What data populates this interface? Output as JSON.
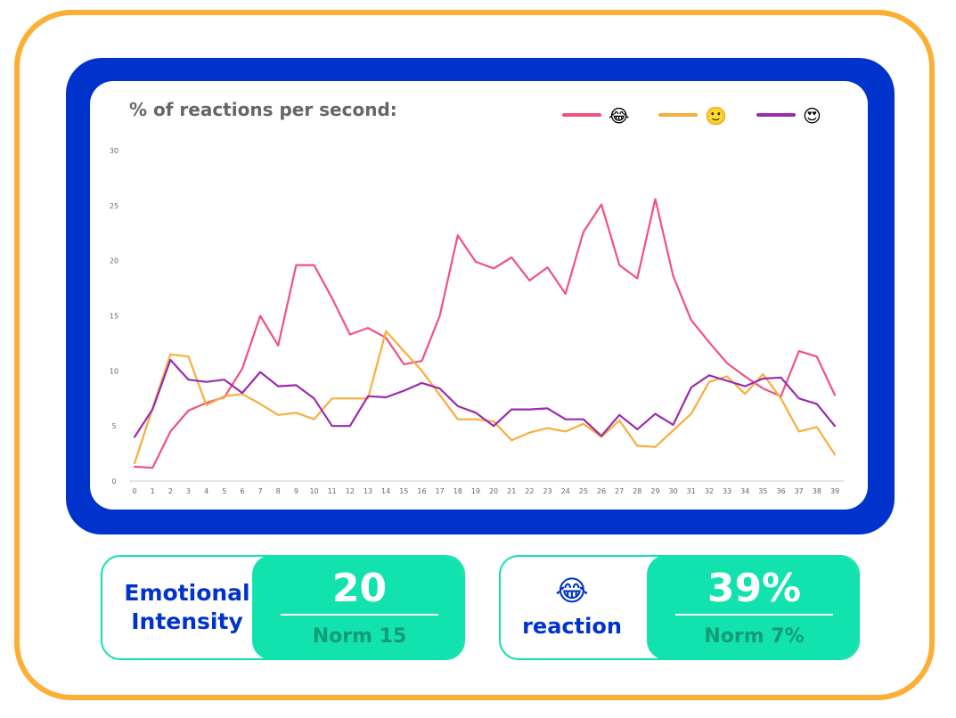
{
  "chart_data": {
    "type": "line",
    "title": "% of reactions per second:",
    "xlabel": "",
    "ylabel": "",
    "x": [
      0,
      1,
      2,
      3,
      4,
      5,
      6,
      7,
      8,
      9,
      10,
      11,
      12,
      13,
      14,
      15,
      16,
      17,
      18,
      19,
      20,
      21,
      22,
      23,
      24,
      25,
      26,
      27,
      28,
      29,
      30,
      31,
      32,
      33,
      34,
      35,
      36,
      37,
      38,
      39
    ],
    "ylim": [
      0,
      30
    ],
    "yticks": [
      0,
      5,
      10,
      15,
      20,
      25,
      30
    ],
    "grid": false,
    "legend_position": "top-right",
    "series": [
      {
        "name": "😂",
        "color": "#f0527f",
        "values": [
          1.3,
          1.2,
          4.5,
          6.4,
          7.1,
          7.6,
          10.2,
          15.0,
          12.3,
          19.6,
          19.6,
          16.6,
          13.3,
          13.9,
          13.0,
          10.6,
          10.9,
          15.0,
          22.3,
          19.9,
          19.3,
          20.3,
          18.2,
          19.4,
          17.0,
          22.6,
          25.1,
          19.6,
          18.4,
          25.6,
          18.6,
          14.6,
          12.6,
          10.7,
          9.5,
          8.4,
          7.7,
          11.8,
          11.3,
          7.8
        ]
      },
      {
        "name": "🙂",
        "color": "#f8ae3b",
        "values": [
          1.6,
          6.6,
          11.5,
          11.3,
          6.9,
          7.7,
          7.9,
          7.0,
          6.0,
          6.2,
          5.6,
          7.5,
          7.5,
          7.5,
          13.6,
          11.8,
          10.0,
          7.8,
          5.6,
          5.6,
          5.4,
          3.7,
          4.4,
          4.8,
          4.5,
          5.2,
          4.0,
          5.5,
          3.2,
          3.1,
          4.6,
          6.1,
          9.0,
          9.5,
          7.9,
          9.7,
          7.5,
          4.5,
          4.9,
          2.4
        ]
      },
      {
        "name": "😍",
        "color": "#9a2bad",
        "values": [
          4.0,
          6.5,
          11.0,
          9.2,
          9.0,
          9.2,
          8.0,
          9.9,
          8.6,
          8.7,
          7.5,
          5.0,
          5.0,
          7.7,
          7.6,
          8.2,
          8.9,
          8.4,
          6.8,
          6.2,
          5.0,
          6.5,
          6.5,
          6.6,
          5.6,
          5.6,
          4.1,
          6.0,
          4.7,
          6.1,
          5.1,
          8.5,
          9.6,
          9.1,
          8.6,
          9.3,
          9.4,
          7.5,
          7.0,
          5.0
        ]
      }
    ]
  },
  "kpis": [
    {
      "label_lines": [
        "Emotional",
        "Intensity"
      ],
      "icon": "",
      "value": "20",
      "norm": "Norm 15"
    },
    {
      "label_lines": [
        "reaction"
      ],
      "icon": "😂",
      "value": "39%",
      "norm": "Norm 7%"
    }
  ],
  "colors": {
    "outer_border": "#fcae35",
    "chart_frame": "#0033cc",
    "kpi_accent": "#12e3ae",
    "kpi_label": "#0033cc",
    "kpi_norm": "#0f9c77"
  }
}
